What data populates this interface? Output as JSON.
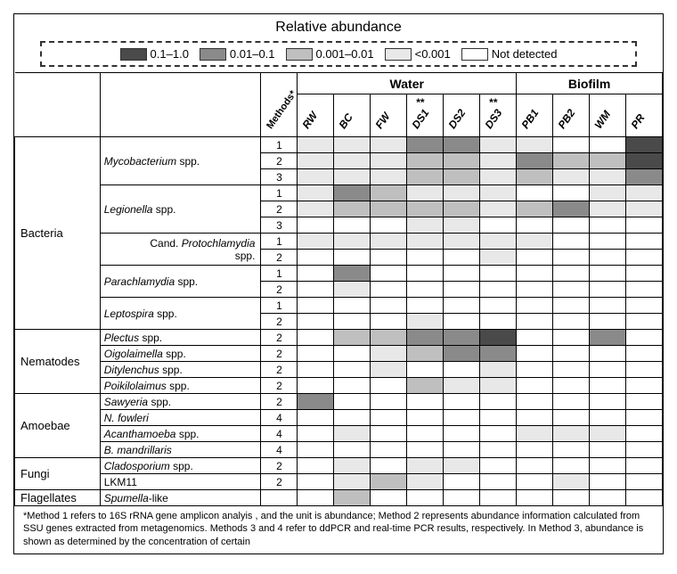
{
  "title": "Relative abundance",
  "colors": {
    "lvl4": "#4a4a4a",
    "lvl3": "#8a8a8a",
    "lvl2": "#bfbfbf",
    "lvl1": "#e8e8e8",
    "lvl0": "#ffffff"
  },
  "legend": [
    {
      "label": "0.1–1.0",
      "level": 4
    },
    {
      "label": "0.01–0.1",
      "level": 3
    },
    {
      "label": "0.001–0.01",
      "level": 2
    },
    {
      "label": "<0.001",
      "level": 1
    },
    {
      "label": "Not detected",
      "level": 0
    }
  ],
  "groupHeaders": {
    "water": "Water",
    "biofilm": "Biofilm"
  },
  "sampleCols": [
    {
      "key": "RW",
      "label": "RW",
      "group": "Water",
      "star": ""
    },
    {
      "key": "BC",
      "label": "BC",
      "group": "Water",
      "star": ""
    },
    {
      "key": "FW",
      "label": "FW",
      "group": "Water",
      "star": ""
    },
    {
      "key": "DS1",
      "label": "DS1",
      "group": "Water",
      "star": "**"
    },
    {
      "key": "DS2",
      "label": "DS2",
      "group": "Water",
      "star": ""
    },
    {
      "key": "DS3",
      "label": "DS3",
      "group": "Water",
      "star": "**"
    },
    {
      "key": "PB1",
      "label": "PB1",
      "group": "Biofilm",
      "star": ""
    },
    {
      "key": "PB2",
      "label": "PB2",
      "group": "Biofilm",
      "star": ""
    },
    {
      "key": "WM",
      "label": "WM",
      "group": "Biofilm",
      "star": ""
    },
    {
      "key": "PR",
      "label": "PR",
      "group": "Biofilm",
      "star": ""
    }
  ],
  "methodsLabel": "Methods*",
  "categories": [
    {
      "name": "Bacteria",
      "species": [
        {
          "label": "Mycobacterium spp.",
          "ital": true,
          "methods": [
            {
              "m": "1",
              "v": [
                1,
                1,
                1,
                3,
                3,
                1,
                1,
                0,
                0,
                4
              ]
            },
            {
              "m": "2",
              "v": [
                1,
                1,
                1,
                2,
                2,
                1,
                3,
                2,
                2,
                4
              ]
            },
            {
              "m": "3",
              "v": [
                1,
                1,
                1,
                2,
                2,
                1,
                2,
                1,
                1,
                3
              ]
            }
          ]
        },
        {
          "label": "Legionella spp.",
          "ital": true,
          "methods": [
            {
              "m": "1",
              "v": [
                1,
                3,
                2,
                1,
                1,
                1,
                0,
                0,
                1,
                1
              ]
            },
            {
              "m": "2",
              "v": [
                1,
                2,
                2,
                2,
                2,
                1,
                2,
                3,
                1,
                1
              ]
            },
            {
              "m": "3",
              "v": [
                0,
                0,
                0,
                1,
                1,
                0,
                0,
                0,
                0,
                0
              ]
            }
          ]
        },
        {
          "label": "Cand. Protochlamydia spp.",
          "ital": "partial",
          "methods": [
            {
              "m": "1",
              "v": [
                1,
                1,
                1,
                1,
                1,
                1,
                1,
                0,
                0,
                0
              ]
            },
            {
              "m": "2",
              "v": [
                0,
                0,
                0,
                0,
                0,
                1,
                0,
                0,
                0,
                0
              ]
            }
          ]
        },
        {
          "label": "Parachlamydia spp.",
          "ital": true,
          "methods": [
            {
              "m": "1",
              "v": [
                0,
                3,
                0,
                0,
                0,
                0,
                0,
                0,
                0,
                0
              ]
            },
            {
              "m": "2",
              "v": [
                0,
                1,
                0,
                0,
                0,
                0,
                0,
                0,
                0,
                0
              ]
            }
          ]
        },
        {
          "label": "Leptospira spp.",
          "ital": true,
          "methods": [
            {
              "m": "1",
              "v": [
                0,
                0,
                0,
                0,
                0,
                0,
                0,
                0,
                0,
                0
              ]
            },
            {
              "m": "2",
              "v": [
                0,
                0,
                0,
                1,
                0,
                0,
                0,
                0,
                0,
                0
              ]
            }
          ]
        }
      ]
    },
    {
      "name": "Nematodes",
      "species": [
        {
          "label": "Plectus spp.",
          "ital": true,
          "methods": [
            {
              "m": "2",
              "v": [
                0,
                2,
                2,
                3,
                3,
                4,
                0,
                0,
                3,
                0
              ]
            }
          ]
        },
        {
          "label": "Oigolaimella spp.",
          "ital": true,
          "methods": [
            {
              "m": "2",
              "v": [
                0,
                0,
                1,
                2,
                3,
                3,
                0,
                0,
                0,
                0
              ]
            }
          ]
        },
        {
          "label": "Ditylenchus spp.",
          "ital": true,
          "methods": [
            {
              "m": "2",
              "v": [
                0,
                0,
                1,
                0,
                0,
                1,
                0,
                0,
                0,
                0
              ]
            }
          ]
        },
        {
          "label": "Poikilolaimus spp.",
          "ital": true,
          "methods": [
            {
              "m": "2",
              "v": [
                0,
                0,
                0,
                2,
                1,
                1,
                0,
                0,
                0,
                0
              ]
            }
          ]
        }
      ]
    },
    {
      "name": "Amoebae",
      "species": [
        {
          "label": "Sawyeria spp.",
          "ital": true,
          "methods": [
            {
              "m": "2",
              "v": [
                3,
                0,
                0,
                0,
                0,
                0,
                0,
                0,
                0,
                0
              ]
            }
          ]
        },
        {
          "label": "N. fowleri",
          "ital": true,
          "methods": [
            {
              "m": "4",
              "v": [
                0,
                0,
                0,
                0,
                0,
                0,
                0,
                0,
                0,
                0
              ]
            }
          ]
        },
        {
          "label": "Acanthamoeba spp.",
          "ital": true,
          "methods": [
            {
              "m": "4",
              "v": [
                0,
                1,
                0,
                0,
                0,
                0,
                1,
                1,
                1,
                0
              ]
            }
          ]
        },
        {
          "label": "B. mandrillaris",
          "ital": true,
          "methods": [
            {
              "m": "4",
              "v": [
                0,
                0,
                0,
                0,
                0,
                0,
                0,
                0,
                0,
                0
              ]
            }
          ]
        }
      ]
    },
    {
      "name": "Fungi",
      "species": [
        {
          "label": "Cladosporium spp.",
          "ital": true,
          "methods": [
            {
              "m": "2",
              "v": [
                0,
                1,
                0,
                1,
                1,
                0,
                0,
                0,
                0,
                0
              ]
            }
          ]
        },
        {
          "label": "LKM11",
          "ital": false,
          "methods": [
            {
              "m": "2",
              "v": [
                0,
                1,
                2,
                1,
                0,
                0,
                0,
                1,
                0,
                0
              ]
            }
          ]
        }
      ]
    },
    {
      "name": "Flagellates",
      "species": [
        {
          "label": "Spumella-like",
          "ital": "partial2",
          "methods": [
            {
              "m": "",
              "v": [
                0,
                2,
                0,
                0,
                0,
                0,
                0,
                0,
                0,
                0
              ]
            }
          ]
        }
      ]
    }
  ],
  "footnote": "*Method 1 refers to 16S rRNA gene amplicon analyis , and the unit is abundance; Method 2 represents abundance information calculated from SSU genes extracted from metagenomics. Methods 3 and 4 refer to ddPCR and real-time PCR results, respectively. In Method 3, abundance is shown as determined by the concentration of certain"
}
